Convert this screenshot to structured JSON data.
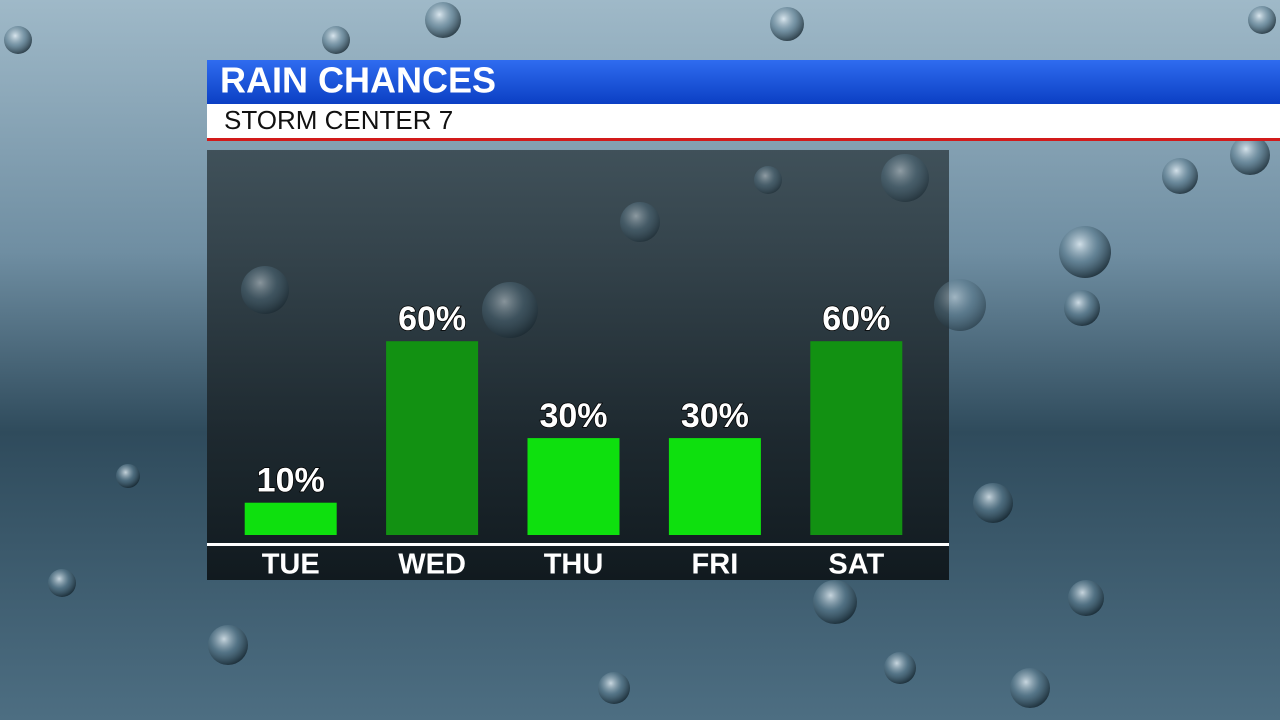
{
  "chart_data": {
    "type": "bar",
    "title": "RAIN CHANCES",
    "subtitle": "STORM CENTER 7",
    "categories": [
      "TUE",
      "WED",
      "THU",
      "FRI",
      "SAT"
    ],
    "values": [
      10,
      60,
      30,
      30,
      60
    ],
    "value_labels": [
      "10%",
      "60%",
      "30%",
      "30%",
      "60%"
    ],
    "colors": [
      "#0ee00e",
      "#129112",
      "#0ee00e",
      "#0ee00e",
      "#129112"
    ],
    "ylim": [
      0,
      100
    ]
  }
}
